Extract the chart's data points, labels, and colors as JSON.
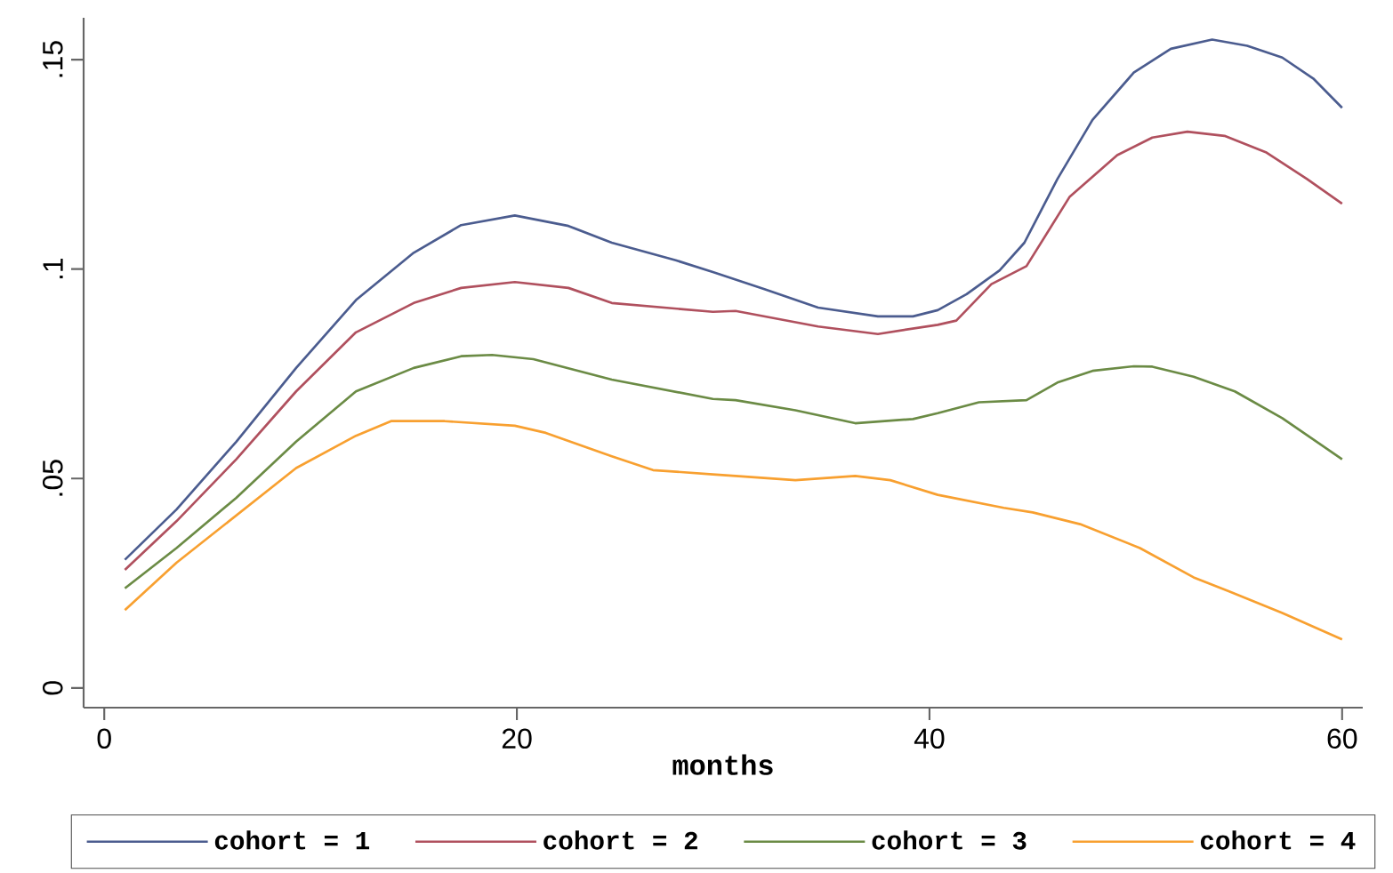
{
  "chart_data": {
    "type": "line",
    "xlabel": "months",
    "xlim": [
      -1,
      61
    ],
    "ylim": [
      -0.0047,
      0.16
    ],
    "xticks": [
      0,
      20,
      40,
      60
    ],
    "yticks": [
      {
        "value": 0,
        "label": "0"
      },
      {
        "value": 0.05,
        "label": ".05"
      },
      {
        "value": 0.1,
        "label": ".1"
      },
      {
        "value": 0.15,
        "label": ".15"
      }
    ],
    "grid": false,
    "legend": "bottom",
    "marker": "none",
    "line_style": "solid",
    "series": [
      {
        "name": "cohort = 1",
        "color": "#4b5c8f",
        "x": [
          1,
          3.5,
          6.4,
          9.3,
          12.2,
          15,
          17.3,
          19.9,
          22.5,
          24.6,
          27.7,
          29.5,
          32,
          34.6,
          37.5,
          39.2,
          40.4,
          41.8,
          43.4,
          44.6,
          46.2,
          47.9,
          49.9,
          51.7,
          53.7,
          55.4,
          57.1,
          58.6,
          60
        ],
        "values": [
          0.0306,
          0.0426,
          0.0588,
          0.0764,
          0.0926,
          0.1039,
          0.1105,
          0.1128,
          0.1103,
          0.1063,
          0.1021,
          0.0993,
          0.0952,
          0.0908,
          0.0887,
          0.0887,
          0.0902,
          0.094,
          0.0997,
          0.1063,
          0.1215,
          0.1356,
          0.1469,
          0.1526,
          0.1548,
          0.1533,
          0.1505,
          0.1455,
          0.1385
        ]
      },
      {
        "name": "cohort = 2",
        "color": "#b0505e",
        "x": [
          1,
          3.5,
          6.4,
          9.3,
          12.2,
          15,
          17.3,
          19.9,
          22.5,
          24.6,
          29.5,
          30.6,
          34.6,
          37.5,
          40.4,
          41.3,
          43,
          44.7,
          46.8,
          49.1,
          50.8,
          52.5,
          54.3,
          56.3,
          58.3,
          60
        ],
        "values": [
          0.0282,
          0.0398,
          0.0546,
          0.0708,
          0.0849,
          0.0919,
          0.0955,
          0.0969,
          0.0955,
          0.0919,
          0.0898,
          0.09,
          0.0863,
          0.0845,
          0.0867,
          0.0877,
          0.0964,
          0.1007,
          0.1173,
          0.1272,
          0.1314,
          0.1328,
          0.1318,
          0.1279,
          0.1215,
          0.1156
        ]
      },
      {
        "name": "cohort = 3",
        "color": "#6b8b45",
        "x": [
          1,
          3.5,
          6.4,
          9.3,
          12.2,
          15,
          17.3,
          18.8,
          20.8,
          24.6,
          29.5,
          30.6,
          33.5,
          36.4,
          39.2,
          40.4,
          42.4,
          44.7,
          46.2,
          47.9,
          49.9,
          50.8,
          52.8,
          54.8,
          57.1,
          60
        ],
        "values": [
          0.0238,
          0.0334,
          0.0454,
          0.0588,
          0.0708,
          0.0764,
          0.0792,
          0.0795,
          0.0785,
          0.0736,
          0.069,
          0.0687,
          0.0663,
          0.0632,
          0.0642,
          0.0656,
          0.0682,
          0.0687,
          0.0729,
          0.0757,
          0.0768,
          0.0767,
          0.0743,
          0.0708,
          0.0644,
          0.0546
        ]
      },
      {
        "name": "cohort = 4",
        "color": "#f8a030",
        "x": [
          1,
          3.5,
          6.4,
          9.3,
          12.2,
          13.9,
          16.5,
          19.9,
          21.4,
          24.6,
          26.6,
          29.5,
          30.6,
          33.5,
          36.4,
          38.1,
          40.4,
          43.6,
          45,
          47.3,
          50.2,
          52.8,
          54.5,
          57.1,
          60
        ],
        "values": [
          0.0186,
          0.0299,
          0.0412,
          0.0525,
          0.0602,
          0.0637,
          0.0637,
          0.0626,
          0.0609,
          0.0553,
          0.052,
          0.051,
          0.0506,
          0.0496,
          0.0506,
          0.0496,
          0.0461,
          0.043,
          0.0419,
          0.0391,
          0.0334,
          0.0264,
          0.0231,
          0.0179,
          0.0116
        ]
      }
    ]
  }
}
